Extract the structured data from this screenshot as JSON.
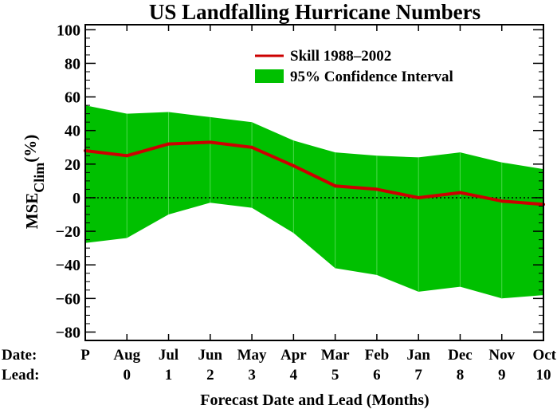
{
  "chart_data": {
    "type": "area",
    "title": "US Landfalling Hurricane Numbers",
    "ylabel_main": "MSE",
    "ylabel_sub": "Clim",
    "ylabel_unit": "(%)",
    "xlabel": "Forecast Date and Lead (Months)",
    "row_label_date": "Date:",
    "row_label_lead": "Lead:",
    "dates": [
      "P",
      "Aug",
      "Jul",
      "Jun",
      "May",
      "Apr",
      "Mar",
      "Feb",
      "Jan",
      "Dec",
      "Nov",
      "Oct"
    ],
    "leads": [
      "",
      "0",
      "1",
      "2",
      "3",
      "4",
      "5",
      "6",
      "7",
      "8",
      "9",
      "10"
    ],
    "x": [
      -1,
      0,
      1,
      2,
      3,
      4,
      5,
      6,
      7,
      8,
      9,
      10
    ],
    "xlim": [
      -1,
      10
    ],
    "ylim": [
      -85,
      103
    ],
    "yticks": [
      -80,
      -60,
      -40,
      -20,
      0,
      20,
      40,
      60,
      80,
      100
    ],
    "yticks_minor_step": 5,
    "zero_line": "dotted",
    "legend_position": "top-right",
    "series": [
      {
        "name": "Skill 1988–2002",
        "kind": "line",
        "color": "#cc0000",
        "values": [
          28,
          25,
          32,
          33,
          30,
          19,
          7,
          5,
          0,
          3,
          -2,
          -4
        ]
      },
      {
        "name": "95% Confidence Interval",
        "kind": "band",
        "color": "#00c000",
        "upper": [
          55,
          50,
          51,
          48,
          45,
          34,
          27,
          25,
          24,
          27,
          21,
          17
        ],
        "lower": [
          -27,
          -24,
          -10,
          -3,
          -6,
          -21,
          -42,
          -46,
          -56,
          -53,
          -60,
          -58
        ]
      }
    ]
  }
}
